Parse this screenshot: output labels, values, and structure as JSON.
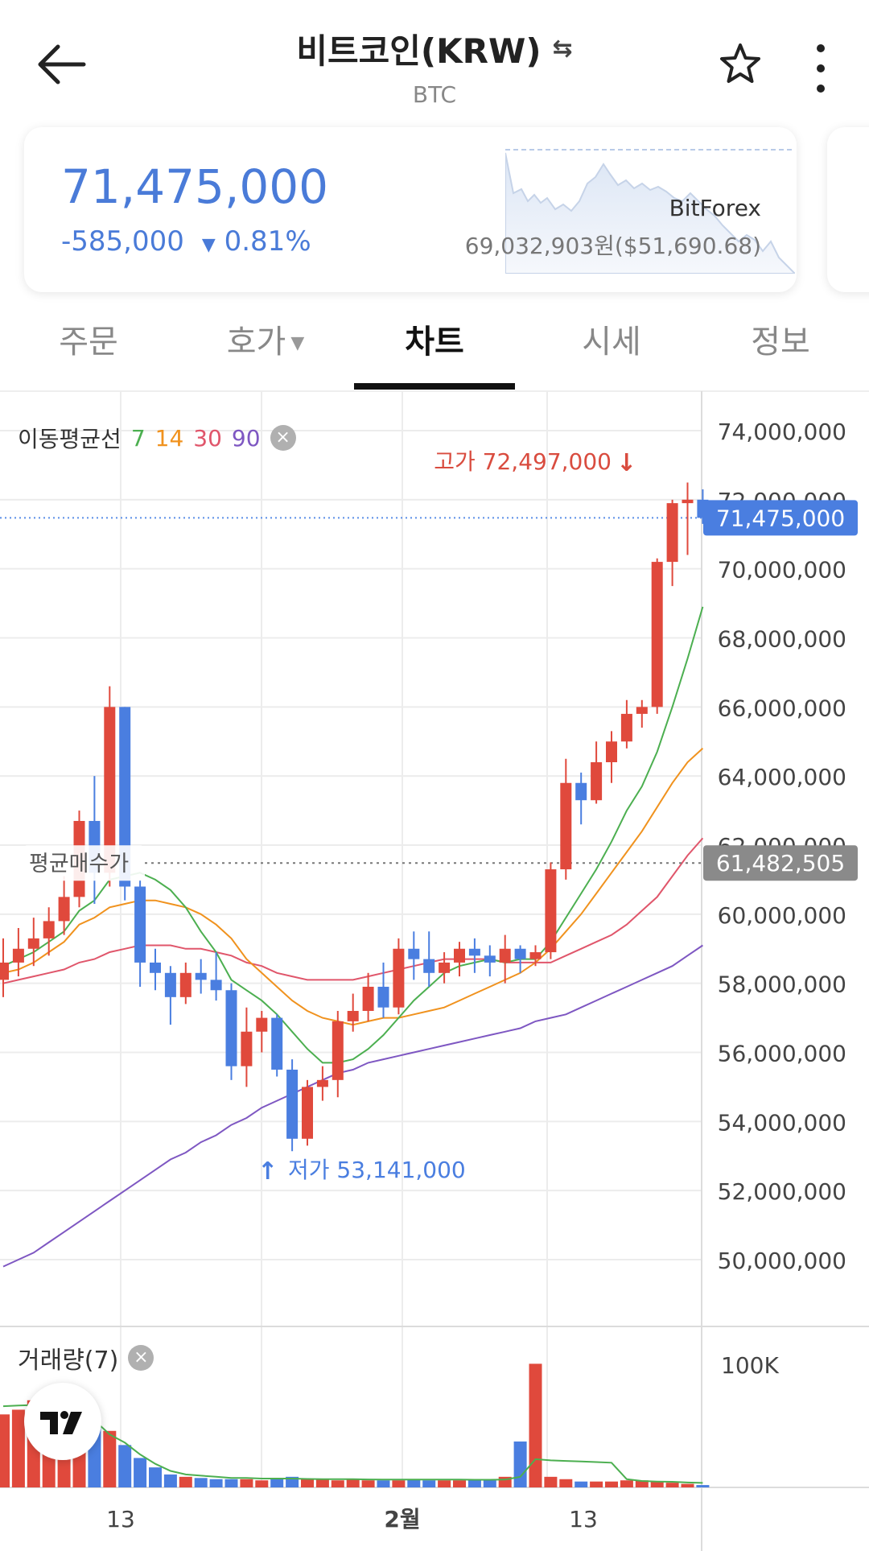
{
  "header": {
    "title": "비트코인(KRW)",
    "subtitle": "BTC",
    "back_icon": "arrow-left-icon",
    "swap_icon": "swap-arrows-icon",
    "star_icon": "star-outline-icon",
    "more_icon": "more-vertical-icon"
  },
  "price": {
    "current": "71,475,000",
    "change": "-585,000",
    "change_pct": "0.81%",
    "direction_icon": "triangle-down-icon",
    "exchange": "BitForex",
    "exchange_price": "69,032,903원($51,690.68)",
    "color": "#4a7bd8"
  },
  "tabs": [
    {
      "label": "주문"
    },
    {
      "label": "호가"
    },
    {
      "label": "차트"
    },
    {
      "label": "시세"
    },
    {
      "label": "정보"
    }
  ],
  "active_tab": "차트",
  "chart": {
    "legend_label": "이동평균선",
    "ma_periods": [
      "7",
      "14",
      "30",
      "90"
    ],
    "ma_colors": [
      "#4caf50",
      "#f0921e",
      "#e0566b",
      "#7e57c2"
    ],
    "high_label": "고가 72,497,000",
    "low_label": "저가 53,141,000",
    "avg_label": "평균매수가",
    "current_badge": "71,475,000",
    "avg_badge": "61,482,505",
    "y_ticks": [
      "74,000,000",
      "72,000,000",
      "70,000,000",
      "68,000,000",
      "66,000,000",
      "64,000,000",
      "62,000,000",
      "60,000,000",
      "58,000,000",
      "56,000,000",
      "54,000,000",
      "52,000,000",
      "50,000,000"
    ],
    "volume_legend": "거래량(7)",
    "volume_tick": "100K",
    "x_ticks": [
      "13",
      "2월",
      "13"
    ],
    "up_color": "#e0493c",
    "down_color": "#4a7ee0"
  },
  "chart_data": {
    "type": "candlestick",
    "ylim": [
      48500000,
      75000000
    ],
    "candles": [
      {
        "o": 58100000,
        "h": 59300000,
        "l": 57600000,
        "c": 58600000
      },
      {
        "o": 58600000,
        "h": 59600000,
        "l": 58200000,
        "c": 59000000
      },
      {
        "o": 59000000,
        "h": 59900000,
        "l": 58500000,
        "c": 59300000
      },
      {
        "o": 59300000,
        "h": 60200000,
        "l": 58800000,
        "c": 59800000
      },
      {
        "o": 59800000,
        "h": 61100000,
        "l": 59400000,
        "c": 60500000
      },
      {
        "o": 60500000,
        "h": 63000000,
        "l": 60200000,
        "c": 62700000
      },
      {
        "o": 62700000,
        "h": 64000000,
        "l": 60300000,
        "c": 61200000
      },
      {
        "o": 61200000,
        "h": 66600000,
        "l": 60800000,
        "c": 66000000
      },
      {
        "o": 66000000,
        "h": 66000000,
        "l": 60400000,
        "c": 60800000
      },
      {
        "o": 60800000,
        "h": 61000000,
        "l": 57900000,
        "c": 58600000
      },
      {
        "o": 58600000,
        "h": 59000000,
        "l": 57800000,
        "c": 58300000
      },
      {
        "o": 58300000,
        "h": 58500000,
        "l": 56800000,
        "c": 57600000
      },
      {
        "o": 57600000,
        "h": 58600000,
        "l": 57400000,
        "c": 58300000
      },
      {
        "o": 58300000,
        "h": 58700000,
        "l": 57700000,
        "c": 58100000
      },
      {
        "o": 58100000,
        "h": 58900000,
        "l": 57500000,
        "c": 57800000
      },
      {
        "o": 57800000,
        "h": 58000000,
        "l": 55200000,
        "c": 55600000
      },
      {
        "o": 55600000,
        "h": 57300000,
        "l": 55000000,
        "c": 56600000
      },
      {
        "o": 56600000,
        "h": 57200000,
        "l": 56000000,
        "c": 57000000
      },
      {
        "o": 57000000,
        "h": 57100000,
        "l": 55300000,
        "c": 55500000
      },
      {
        "o": 55500000,
        "h": 55800000,
        "l": 53141000,
        "c": 53500000
      },
      {
        "o": 53500000,
        "h": 55200000,
        "l": 53300000,
        "c": 55000000
      },
      {
        "o": 55000000,
        "h": 55600000,
        "l": 54600000,
        "c": 55200000
      },
      {
        "o": 55200000,
        "h": 57200000,
        "l": 54700000,
        "c": 56900000
      },
      {
        "o": 56900000,
        "h": 57700000,
        "l": 56600000,
        "c": 57200000
      },
      {
        "o": 57200000,
        "h": 58300000,
        "l": 56900000,
        "c": 57900000
      },
      {
        "o": 57900000,
        "h": 58600000,
        "l": 57000000,
        "c": 57300000
      },
      {
        "o": 57300000,
        "h": 59300000,
        "l": 57100000,
        "c": 59000000
      },
      {
        "o": 59000000,
        "h": 59500000,
        "l": 58100000,
        "c": 58700000
      },
      {
        "o": 58700000,
        "h": 59500000,
        "l": 57900000,
        "c": 58300000
      },
      {
        "o": 58300000,
        "h": 58900000,
        "l": 58000000,
        "c": 58600000
      },
      {
        "o": 58600000,
        "h": 59200000,
        "l": 58200000,
        "c": 59000000
      },
      {
        "o": 59000000,
        "h": 59300000,
        "l": 58300000,
        "c": 58800000
      },
      {
        "o": 58800000,
        "h": 59100000,
        "l": 58200000,
        "c": 58600000
      },
      {
        "o": 58600000,
        "h": 59400000,
        "l": 58000000,
        "c": 59000000
      },
      {
        "o": 59000000,
        "h": 59100000,
        "l": 58300000,
        "c": 58700000
      },
      {
        "o": 58700000,
        "h": 59100000,
        "l": 58500000,
        "c": 58900000
      },
      {
        "o": 58900000,
        "h": 61500000,
        "l": 58700000,
        "c": 61300000
      },
      {
        "o": 61300000,
        "h": 64500000,
        "l": 61000000,
        "c": 63800000
      },
      {
        "o": 63800000,
        "h": 64100000,
        "l": 62600000,
        "c": 63300000
      },
      {
        "o": 63300000,
        "h": 65000000,
        "l": 63200000,
        "c": 64400000
      },
      {
        "o": 64400000,
        "h": 65300000,
        "l": 63800000,
        "c": 65000000
      },
      {
        "o": 65000000,
        "h": 66200000,
        "l": 64800000,
        "c": 65800000
      },
      {
        "o": 65800000,
        "h": 66200000,
        "l": 65400000,
        "c": 66000000
      },
      {
        "o": 66000000,
        "h": 70300000,
        "l": 65800000,
        "c": 70200000
      },
      {
        "o": 70200000,
        "h": 72000000,
        "l": 69500000,
        "c": 71900000
      },
      {
        "o": 71900000,
        "h": 72497000,
        "l": 70400000,
        "c": 72000000
      },
      {
        "o": 72000000,
        "h": 72300000,
        "l": 71300000,
        "c": 71475000
      }
    ],
    "ma7": [
      58500000,
      58700000,
      58900000,
      59200000,
      59500000,
      60100000,
      60400000,
      61000000,
      61100000,
      61200000,
      61000000,
      60700000,
      60200000,
      59500000,
      58900000,
      58100000,
      57800000,
      57500000,
      57100000,
      56600000,
      56100000,
      55700000,
      55700000,
      55800000,
      56100000,
      56500000,
      57000000,
      57500000,
      57900000,
      58300000,
      58500000,
      58600000,
      58700000,
      58600000,
      58700000,
      58700000,
      59200000,
      59900000,
      60600000,
      61300000,
      62100000,
      63000000,
      63700000,
      64700000,
      66000000,
      67400000,
      68900000
    ],
    "ma14": [
      58300000,
      58400000,
      58600000,
      58900000,
      59200000,
      59700000,
      59900000,
      60200000,
      60300000,
      60400000,
      60400000,
      60300000,
      60200000,
      60000000,
      59700000,
      59300000,
      58700000,
      58300000,
      57900000,
      57500000,
      57200000,
      57000000,
      56900000,
      56800000,
      56900000,
      57000000,
      57000000,
      57100000,
      57200000,
      57300000,
      57500000,
      57700000,
      57900000,
      58100000,
      58300000,
      58600000,
      59000000,
      59500000,
      60000000,
      60600000,
      61200000,
      61800000,
      62400000,
      63100000,
      63800000,
      64400000,
      64800000
    ],
    "ma30": [
      58000000,
      58100000,
      58200000,
      58300000,
      58400000,
      58600000,
      58700000,
      58900000,
      59000000,
      59100000,
      59100000,
      59100000,
      59000000,
      59000000,
      58900000,
      58800000,
      58600000,
      58500000,
      58300000,
      58200000,
      58100000,
      58100000,
      58100000,
      58100000,
      58200000,
      58300000,
      58400000,
      58500000,
      58600000,
      58700000,
      58700000,
      58700000,
      58700000,
      58600000,
      58600000,
      58600000,
      58600000,
      58800000,
      59000000,
      59200000,
      59400000,
      59700000,
      60100000,
      60500000,
      61100000,
      61700000,
      62200000
    ],
    "ma90": [
      49800000,
      50000000,
      50200000,
      50500000,
      50800000,
      51100000,
      51400000,
      51700000,
      52000000,
      52300000,
      52600000,
      52900000,
      53100000,
      53400000,
      53600000,
      53900000,
      54100000,
      54400000,
      54600000,
      54800000,
      55000000,
      55200000,
      55400000,
      55500000,
      55700000,
      55800000,
      55900000,
      56000000,
      56100000,
      56200000,
      56300000,
      56400000,
      56500000,
      56600000,
      56700000,
      56900000,
      57000000,
      57100000,
      57300000,
      57500000,
      57700000,
      57900000,
      58100000,
      58300000,
      58500000,
      58800000,
      59100000
    ],
    "volume": [
      62000,
      66000,
      74000,
      74000,
      79000,
      62000,
      52000,
      48000,
      36000,
      25000,
      17000,
      11000,
      9000,
      8000,
      7000,
      7000,
      7000,
      6000,
      7000,
      9000,
      7000,
      7000,
      6000,
      7000,
      6000,
      6000,
      6000,
      7000,
      6000,
      6000,
      6000,
      7000,
      6000,
      9000,
      39000,
      105000,
      9000,
      7000,
      5000,
      5000,
      5000,
      6000,
      6000,
      5000,
      4000,
      3000,
      2000
    ],
    "volume_ma": [
      69000,
      69500,
      70000,
      68500,
      67000,
      63000,
      57000,
      45000,
      38000,
      28000,
      20000,
      14000,
      11000,
      10000,
      9000,
      8000,
      8000,
      7500,
      7500,
      7500,
      7200,
      7000,
      7000,
      7000,
      6800,
      6600,
      6600,
      6600,
      6600,
      6600,
      6600,
      6500,
      6500,
      6600,
      9000,
      24000,
      23000,
      22500,
      22000,
      21500,
      21000,
      7000,
      5500,
      5000,
      4800,
      4200,
      3800
    ],
    "volume_ylim": [
      0,
      108000
    ]
  }
}
